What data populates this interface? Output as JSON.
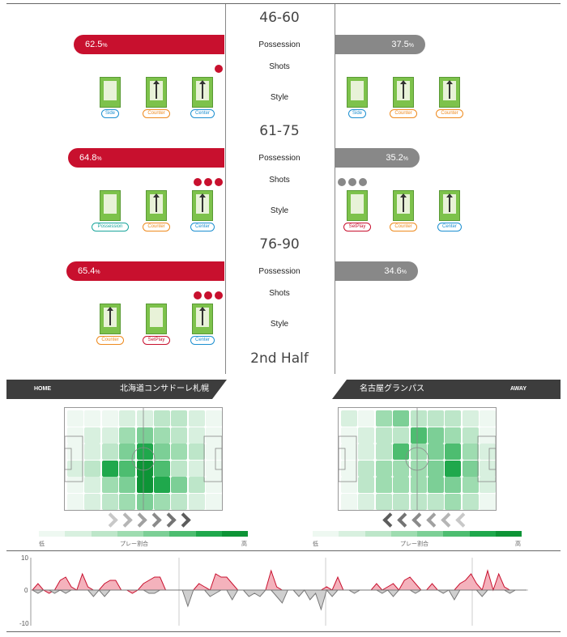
{
  "periods": [
    {
      "label": "46-60",
      "home_possession": 62.5,
      "away_possession": 37.5,
      "home_pct_text": "62.5",
      "away_pct_text": "37.5",
      "home_shots": 1,
      "away_shots": 0,
      "home_style": [
        {
          "tag": "Side",
          "color": "blue",
          "arrow": false
        },
        {
          "tag": "Counter",
          "color": "orange",
          "arrow": true
        },
        {
          "tag": "Center",
          "color": "blue",
          "arrow": true
        }
      ],
      "away_style": [
        {
          "tag": "Side",
          "color": "blue",
          "arrow": false
        },
        {
          "tag": "Counter",
          "color": "orange",
          "arrow": true
        },
        {
          "tag": "Counter",
          "color": "orange",
          "arrow": true
        }
      ]
    },
    {
      "label": "61-75",
      "home_possession": 64.8,
      "away_possession": 35.2,
      "home_pct_text": "64.8",
      "away_pct_text": "35.2",
      "home_shots": 3,
      "away_shots": 3,
      "home_style": [
        {
          "tag": "Possession",
          "color": "teal",
          "arrow": false
        },
        {
          "tag": "Counter",
          "color": "orange",
          "arrow": true
        },
        {
          "tag": "Center",
          "color": "blue",
          "arrow": true
        }
      ],
      "away_style": [
        {
          "tag": "SetPlay",
          "color": "red",
          "arrow": false
        },
        {
          "tag": "Counter",
          "color": "orange",
          "arrow": true
        },
        {
          "tag": "Center",
          "color": "blue",
          "arrow": true
        }
      ]
    },
    {
      "label": "76-90",
      "home_possession": 65.4,
      "away_possession": 34.6,
      "home_pct_text": "65.4",
      "away_pct_text": "34.6",
      "home_shots": 3,
      "away_shots": 0,
      "home_style": [
        {
          "tag": "Counter",
          "color": "orange",
          "arrow": true
        },
        {
          "tag": "SetPlay",
          "color": "red",
          "arrow": false
        },
        {
          "tag": "Center",
          "color": "blue",
          "arrow": true
        }
      ],
      "away_style": []
    }
  ],
  "labels": {
    "possession": "Possession",
    "shots": "Shots",
    "style": "Style",
    "pct_sign": "%",
    "second_half": "2nd Half"
  },
  "home": {
    "side_label": "HOME",
    "team_name": "北海道コンサドーレ札幌"
  },
  "away": {
    "side_label": "AWAY",
    "team_name": "名古屋グランパス"
  },
  "legend": {
    "low": "低",
    "mid": "プレー割合",
    "high": "高"
  },
  "colors": {
    "home": "#c8102e",
    "away": "#888888",
    "heat": [
      "#eef8f1",
      "#d8f0df",
      "#bde6c9",
      "#9edcb0",
      "#7ccf96",
      "#4dbd70",
      "#1fa84c",
      "#0d9436"
    ]
  },
  "chart": {
    "y_max_label": "10",
    "y_zero_label": "0",
    "y_min_label": "-10"
  },
  "chart_data": {
    "type": "area",
    "ylim": [
      -10,
      10
    ],
    "series": [
      {
        "values": [
          0,
          2,
          0,
          -1,
          0,
          3,
          4,
          1,
          0,
          5,
          1,
          0,
          0,
          2,
          3,
          3,
          0,
          0,
          -1,
          0,
          2,
          3,
          4,
          4,
          0,
          0,
          0,
          0,
          0,
          0,
          2,
          1,
          0,
          5,
          4,
          4,
          2,
          0,
          0,
          0,
          0,
          0,
          0,
          6,
          1,
          0,
          0,
          0,
          0,
          0,
          0,
          0,
          0,
          1,
          0,
          4,
          0,
          0,
          0,
          0,
          0,
          0,
          2,
          0,
          1,
          2,
          0,
          3,
          4,
          2,
          0,
          0,
          2,
          0,
          0,
          0,
          0,
          2,
          3,
          5,
          2,
          0,
          6,
          0,
          5,
          1,
          0,
          0,
          0,
          0
        ]
      },
      {
        "values": [
          0,
          -1,
          0,
          0,
          -1,
          0,
          -1,
          0,
          0,
          0,
          0,
          -2,
          0,
          -2,
          0,
          0,
          0,
          0,
          0,
          0,
          0,
          -1,
          -1,
          0,
          0,
          0,
          0,
          0,
          -5,
          0,
          0,
          0,
          -2,
          -1,
          0,
          0,
          -3,
          0,
          0,
          -2,
          -1,
          -2,
          0,
          0,
          -2,
          -4,
          0,
          0,
          -2,
          0,
          -3,
          -1,
          -6,
          0,
          -2,
          0,
          0,
          0,
          -1,
          0,
          0,
          0,
          0,
          -1,
          0,
          -2,
          0,
          0,
          0,
          -1,
          0,
          0,
          0,
          0,
          -1,
          0,
          -3,
          0,
          0,
          0,
          0,
          -2,
          0,
          0,
          0,
          0,
          -1,
          0,
          0,
          0
        ]
      }
    ]
  }
}
